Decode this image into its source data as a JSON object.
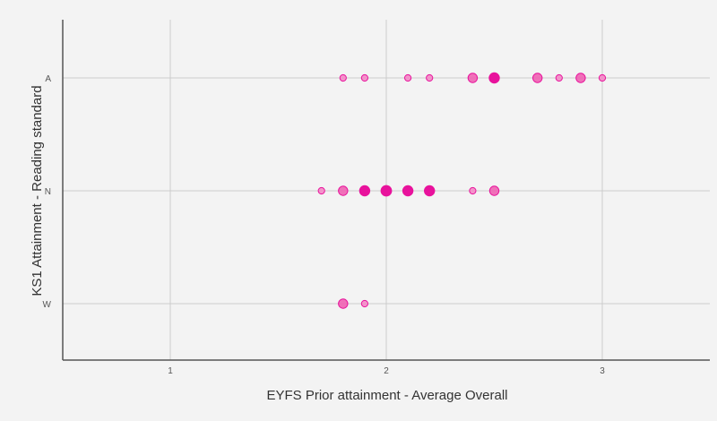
{
  "chart_data": {
    "type": "scatter",
    "xlabel": "EYFS Prior attainment - Average Overall",
    "ylabel": "KS1 Attainment - Reading standard",
    "x_ticks": [
      "1",
      "2",
      "3"
    ],
    "y_categories": [
      "A",
      "N",
      "W"
    ],
    "xlim": [
      0.5,
      3.5
    ],
    "grid": true,
    "colors": {
      "light": "#f48ac6",
      "medium": "#ef62b2",
      "dark": "#e8129c",
      "grid": "#cccccc",
      "axis": "#555555"
    },
    "points": [
      {
        "x": 1.8,
        "y": "A",
        "count": 1
      },
      {
        "x": 1.9,
        "y": "A",
        "count": 1
      },
      {
        "x": 2.1,
        "y": "A",
        "count": 1
      },
      {
        "x": 2.2,
        "y": "A",
        "count": 1
      },
      {
        "x": 2.4,
        "y": "A",
        "count": 2
      },
      {
        "x": 2.5,
        "y": "A",
        "count": 3
      },
      {
        "x": 2.7,
        "y": "A",
        "count": 2
      },
      {
        "x": 2.8,
        "y": "A",
        "count": 1
      },
      {
        "x": 2.9,
        "y": "A",
        "count": 2
      },
      {
        "x": 3.0,
        "y": "A",
        "count": 1
      },
      {
        "x": 1.7,
        "y": "N",
        "count": 1
      },
      {
        "x": 1.8,
        "y": "N",
        "count": 2
      },
      {
        "x": 1.9,
        "y": "N",
        "count": 3
      },
      {
        "x": 2.0,
        "y": "N",
        "count": 4
      },
      {
        "x": 2.1,
        "y": "N",
        "count": 3
      },
      {
        "x": 2.2,
        "y": "N",
        "count": 3
      },
      {
        "x": 2.4,
        "y": "N",
        "count": 1
      },
      {
        "x": 2.5,
        "y": "N",
        "count": 2
      },
      {
        "x": 1.8,
        "y": "W",
        "count": 2
      },
      {
        "x": 1.9,
        "y": "W",
        "count": 1
      }
    ]
  }
}
